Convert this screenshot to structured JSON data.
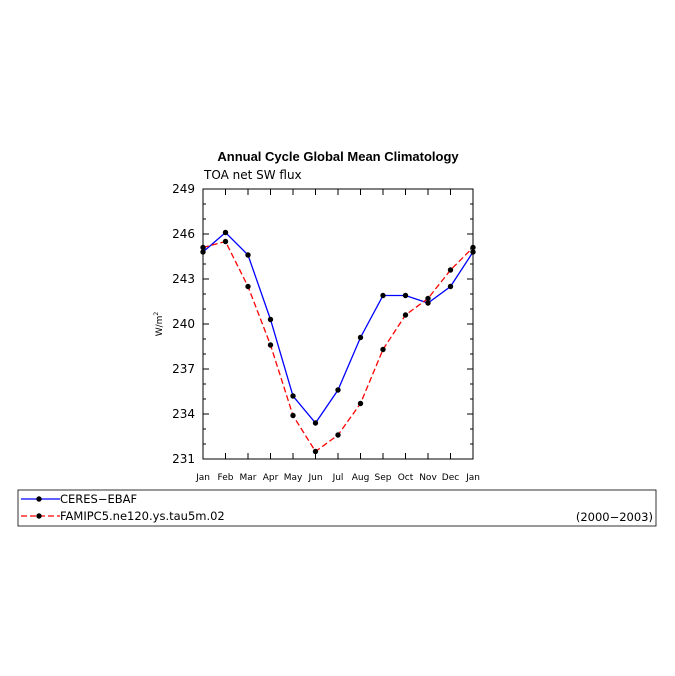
{
  "chart_data": {
    "type": "line",
    "title": "Annual Cycle Global Mean Climatology",
    "subtitle": "TOA net SW flux",
    "ylabel": "W/m",
    "ylabel_sup": "2",
    "xlabel": "",
    "categories": [
      "Jan",
      "Feb",
      "Mar",
      "Apr",
      "May",
      "Jun",
      "Jul",
      "Aug",
      "Sep",
      "Oct",
      "Nov",
      "Dec",
      "Jan"
    ],
    "ylim": [
      231,
      249
    ],
    "yticks": [
      231,
      234,
      237,
      240,
      243,
      246,
      249
    ],
    "grid": false,
    "legend_position": "bottom",
    "legend_note": "(2000−2003)",
    "series": [
      {
        "name": "CERES−EBAF",
        "color": "#0000ff",
        "dashed": false,
        "values": [
          244.8,
          246.1,
          244.6,
          240.3,
          235.2,
          233.4,
          235.6,
          239.1,
          241.9,
          241.9,
          241.4,
          242.5,
          244.8
        ]
      },
      {
        "name": "FAMIPC5.ne120.ys.tau5m.02",
        "color": "#ff0000",
        "dashed": true,
        "values": [
          245.1,
          245.5,
          242.5,
          238.6,
          233.9,
          231.5,
          232.6,
          234.7,
          238.3,
          240.6,
          241.7,
          243.6,
          245.1
        ]
      }
    ]
  }
}
